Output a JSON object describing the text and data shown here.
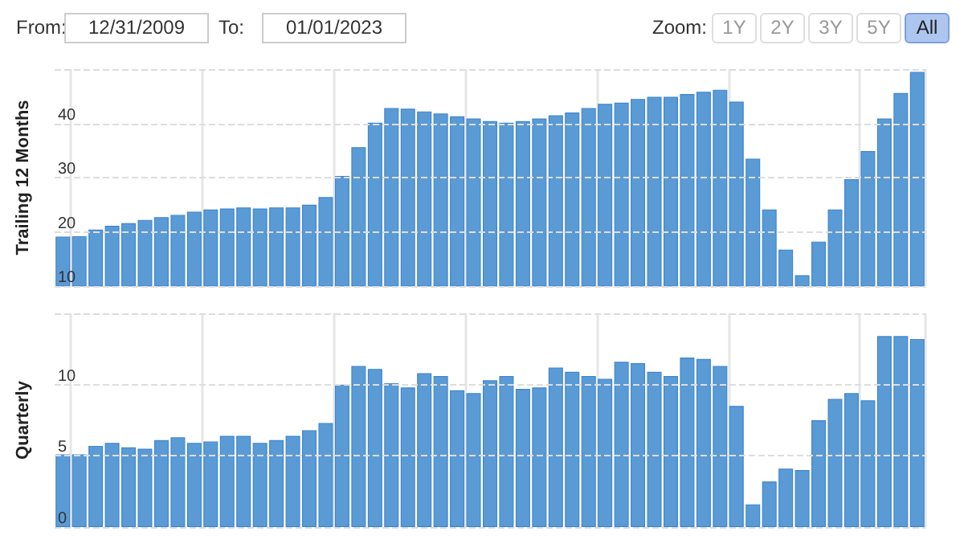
{
  "chart_data": [
    {
      "type": "bar",
      "ylabel": "Trailing 12 Months",
      "annotations": [
        "From:",
        "12/31/2009",
        "To:",
        "01/01/2023",
        "Zoom:",
        "1Y",
        "2Y",
        "3Y",
        "5Y",
        "All"
      ],
      "categories": [
        null,
        null,
        null,
        null,
        null,
        null,
        null,
        null,
        null,
        null,
        null,
        null,
        null,
        null,
        null,
        null,
        null,
        null,
        null,
        null,
        null,
        null,
        null,
        null,
        null,
        null,
        null,
        null,
        null,
        null,
        null,
        null,
        null,
        null,
        null,
        null,
        null,
        null,
        null,
        null,
        null,
        null,
        null,
        null,
        null,
        null,
        null,
        null,
        null,
        null,
        null,
        null,
        null
      ],
      "series": [
        {
          "color": "#5b9bd5",
          "values": [
            19.1,
            19.2,
            20.4,
            21.1,
            21.6,
            22.2,
            22.7,
            23.1,
            23.7,
            24.1,
            24.3,
            24.5,
            24.3,
            24.5,
            24.5,
            25.0,
            26.4,
            30.3,
            35.6,
            40.1,
            42.8,
            42.7,
            42.2,
            41.8,
            41.3,
            40.9,
            40.4,
            40.1,
            40.4,
            40.9,
            41.5,
            42.0,
            42.8,
            43.6,
            43.8,
            44.5,
            44.9,
            44.9,
            45.4,
            45.8,
            46.2,
            44.0,
            33.5,
            24.1,
            16.7,
            12.0,
            18.2,
            24.1,
            29.7,
            34.9,
            40.9,
            45.6,
            49.5
          ]
        }
      ],
      "ylim": [
        10,
        50
      ],
      "yticks": [
        10,
        20,
        30,
        40,
        {
          "value": 50,
          "label": null
        }
      ],
      "grid": true,
      "tick_labels": "y"
    },
    {
      "type": "bar",
      "ylabel": "Quarterly",
      "categories": [
        null,
        null,
        null,
        null,
        null,
        null,
        null,
        null,
        null,
        null,
        null,
        null,
        null,
        null,
        null,
        null,
        null,
        null,
        null,
        null,
        null,
        null,
        null,
        null,
        null,
        null,
        null,
        null,
        null,
        null,
        null,
        null,
        null,
        null,
        null,
        null,
        null,
        null,
        null,
        null,
        null,
        null,
        null,
        null,
        null,
        null,
        null,
        null,
        null,
        null,
        null,
        null,
        null
      ],
      "series": [
        {
          "color": "#5b9bd5",
          "values": [
            5.1,
            5.1,
            5.7,
            5.9,
            5.6,
            5.5,
            6.1,
            6.3,
            5.9,
            6.0,
            6.4,
            6.4,
            5.9,
            6.1,
            6.4,
            6.8,
            7.3,
            10.0,
            11.3,
            11.1,
            10.1,
            9.8,
            10.8,
            10.6,
            9.6,
            9.4,
            10.3,
            10.6,
            9.7,
            9.8,
            11.2,
            10.9,
            10.6,
            10.4,
            11.6,
            11.5,
            10.9,
            10.6,
            11.9,
            11.8,
            11.3,
            8.5,
            1.6,
            3.2,
            4.1,
            4.0,
            7.5,
            9.0,
            9.4,
            8.9,
            13.4,
            13.4,
            13.2
          ]
        }
      ],
      "ylim": [
        0,
        15
      ],
      "yticks": [
        0,
        5,
        10,
        {
          "value": 15,
          "label": null
        }
      ],
      "grid": true,
      "tick_labels": "y"
    }
  ]
}
